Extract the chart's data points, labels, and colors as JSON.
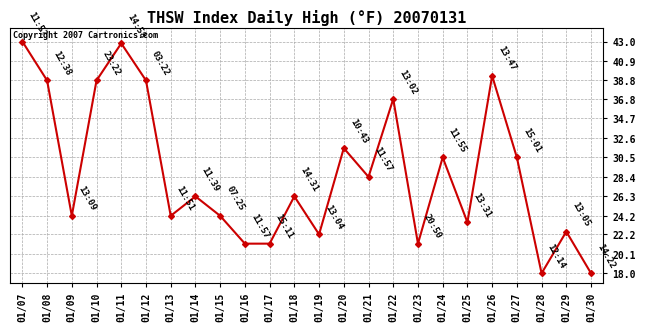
{
  "title": "THSW Index Daily High (°F) 20070131",
  "copyright": "Copyright 2007 Cartronics.com",
  "x_labels": [
    "01/07",
    "01/08",
    "01/09",
    "01/10",
    "01/11",
    "01/12",
    "01/13",
    "01/14",
    "01/15",
    "01/16",
    "01/17",
    "01/18",
    "01/19",
    "01/20",
    "01/21",
    "01/22",
    "01/23",
    "01/24",
    "01/25",
    "01/26",
    "01/27",
    "01/28",
    "01/29",
    "01/30"
  ],
  "y_values": [
    43.0,
    38.8,
    24.2,
    38.8,
    42.8,
    38.8,
    24.2,
    26.3,
    24.2,
    21.2,
    21.2,
    26.3,
    22.2,
    31.5,
    28.4,
    36.8,
    21.2,
    30.5,
    23.5,
    39.3,
    30.5,
    18.0,
    22.5,
    18.0
  ],
  "time_labels": [
    "11:5?",
    "12:38",
    "13:09",
    "23:22",
    "14:58",
    "03:22",
    "11:51",
    "11:39",
    "07:25",
    "11:57",
    "15:11",
    "14:31",
    "13:04",
    "10:43",
    "11:57",
    "13:02",
    "20:50",
    "11:55",
    "13:31",
    "13:47",
    "15:01",
    "12:14",
    "13:05",
    "14:22"
  ],
  "y_ticks": [
    18.0,
    20.1,
    22.2,
    24.2,
    26.3,
    28.4,
    30.5,
    32.6,
    34.7,
    36.8,
    38.8,
    40.9,
    43.0
  ],
  "line_color": "#cc0000",
  "marker_color": "#cc0000",
  "bg_color": "#ffffff",
  "grid_color": "#aaaaaa",
  "title_fontsize": 11,
  "label_fontsize": 6.5,
  "tick_fontsize": 7,
  "copyright_fontsize": 6
}
